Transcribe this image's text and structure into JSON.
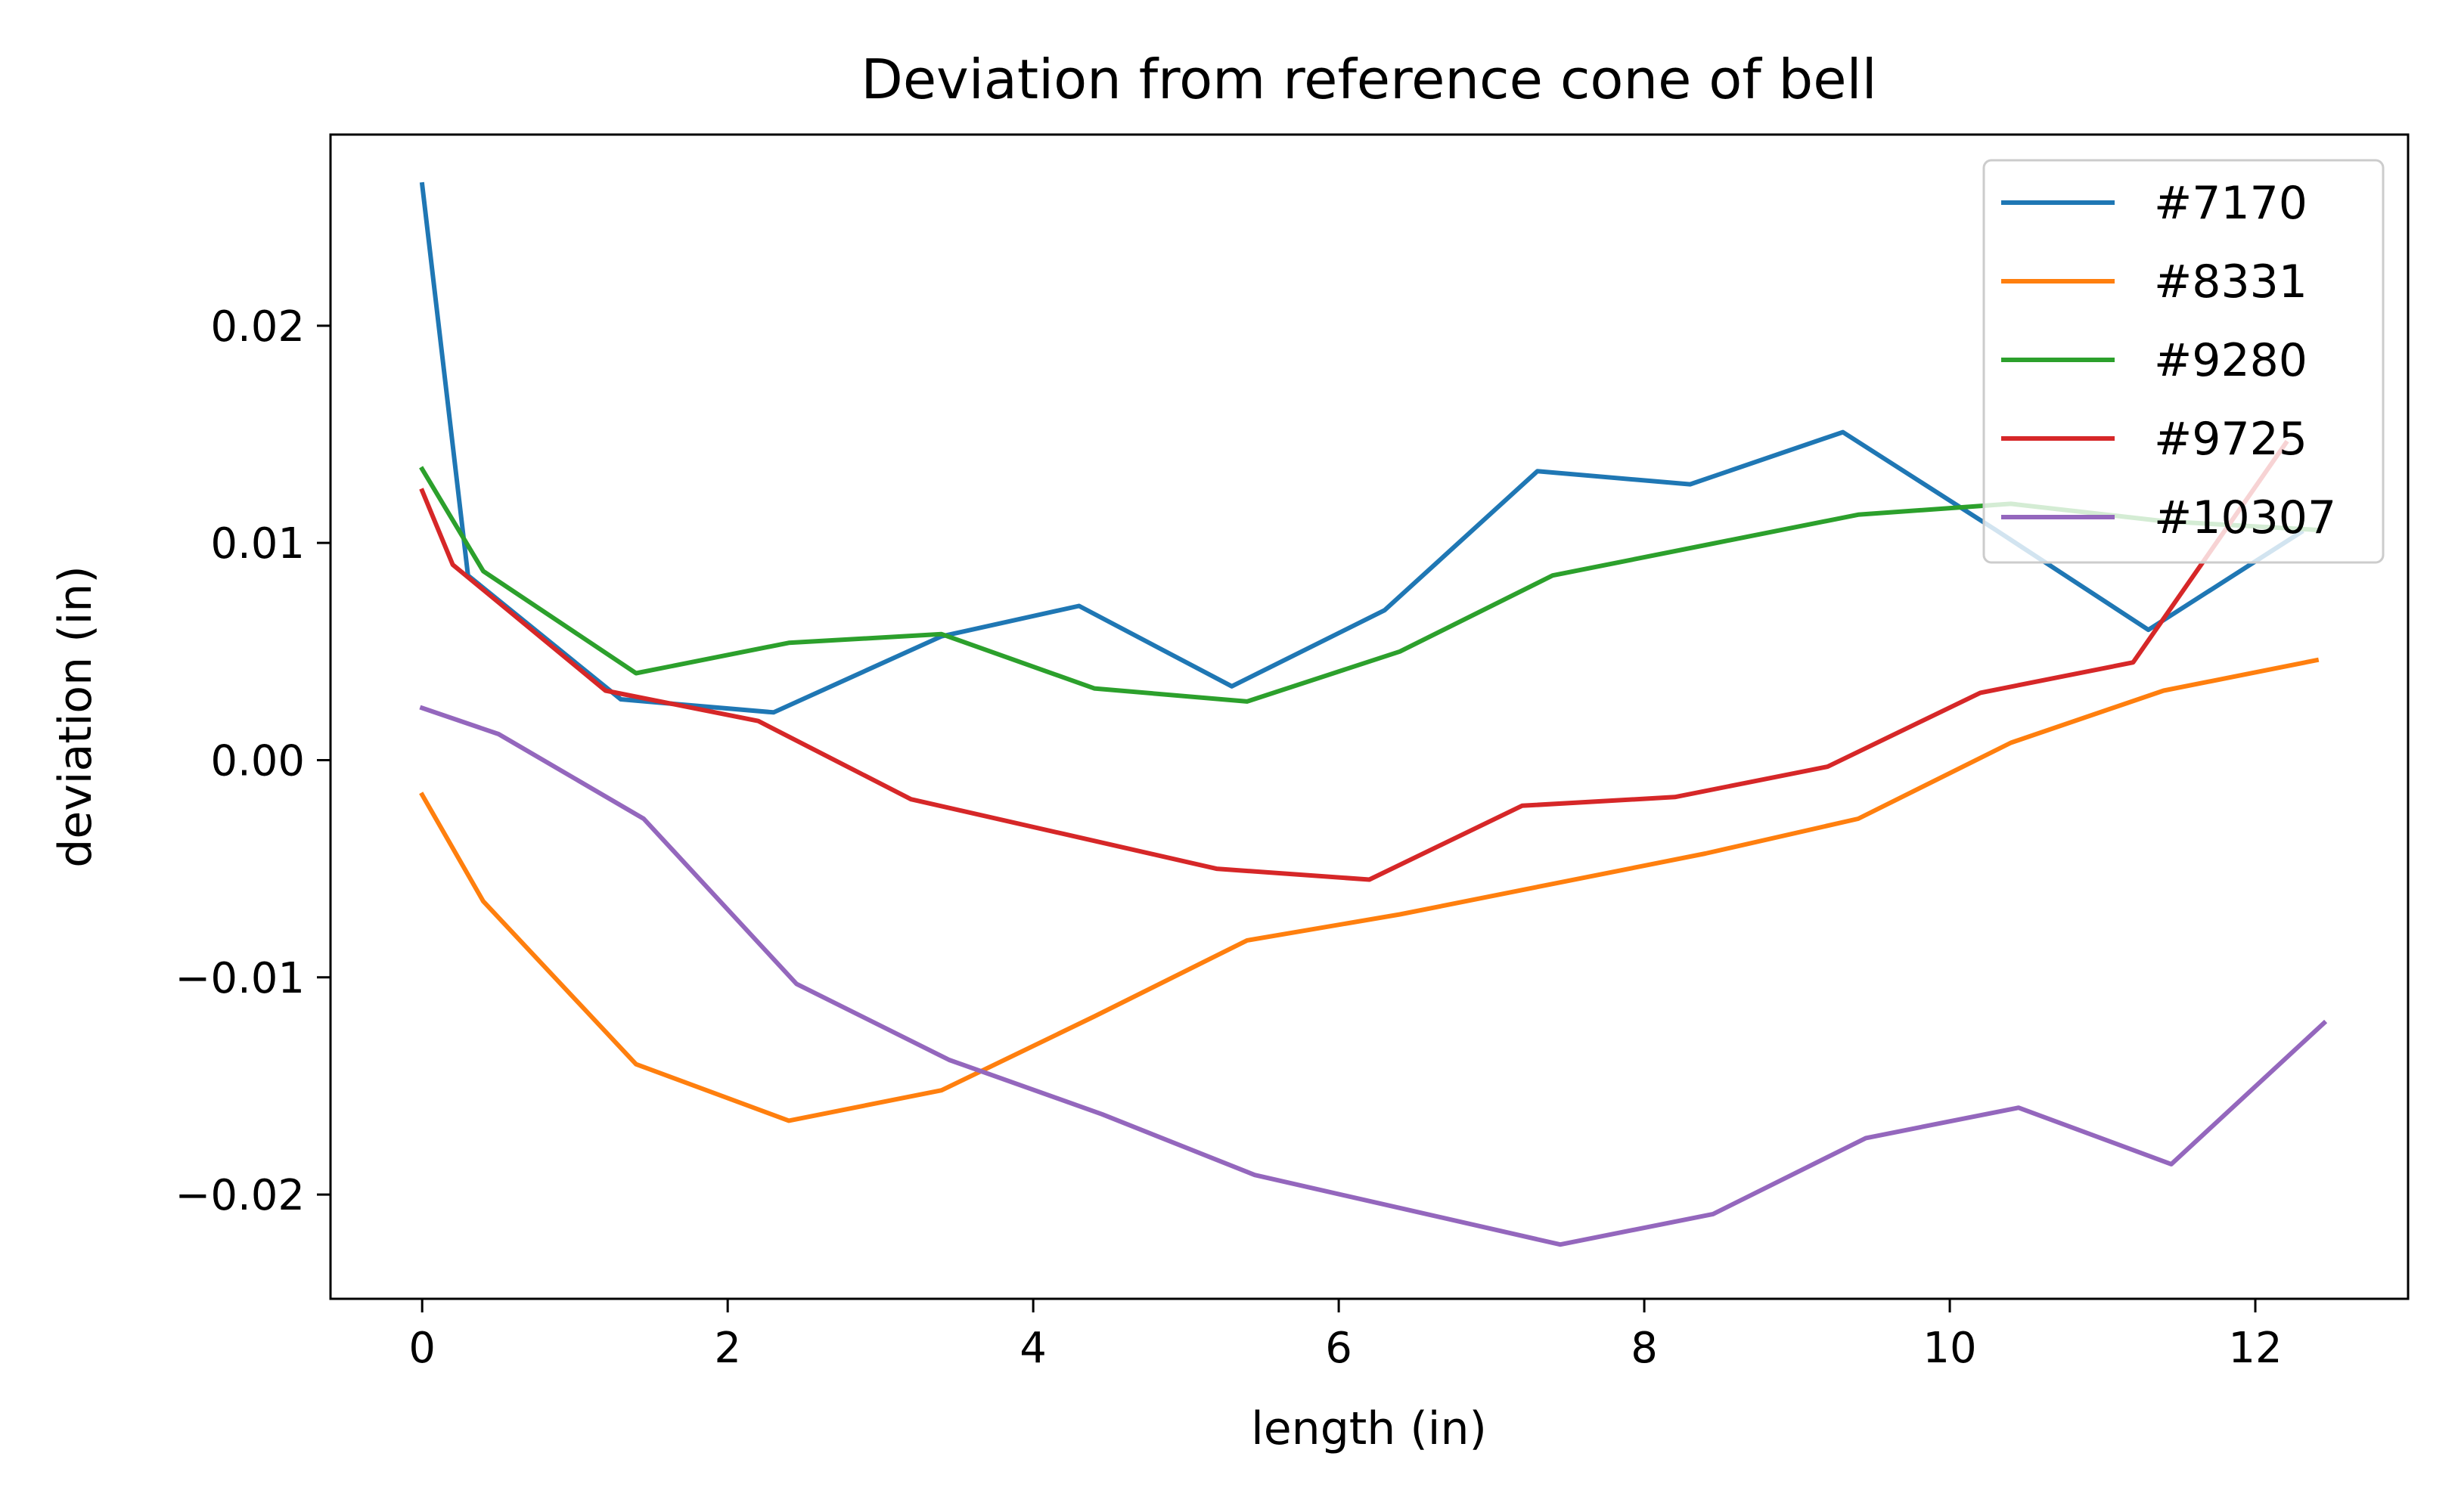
{
  "chart_data": {
    "type": "line",
    "title": "Deviation from reference cone of bell",
    "xlabel": "length (in)",
    "ylabel": "deviation (in)",
    "xlim": [
      -0.6,
      13.0
    ],
    "ylim": [
      -0.0248,
      0.0288
    ],
    "xticks": [
      0,
      2,
      4,
      6,
      8,
      10,
      12
    ],
    "xtick_labels": [
      "0",
      "2",
      "4",
      "6",
      "8",
      "10",
      "12"
    ],
    "yticks": [
      -0.02,
      -0.01,
      0.0,
      0.01,
      0.02
    ],
    "ytick_labels": [
      "−0.02",
      "−0.01",
      "0.00",
      "0.01",
      "0.02"
    ],
    "grid": false,
    "legend_position": "top-right",
    "series": [
      {
        "name": "#7170",
        "color": "#1f77b4",
        "x": [
          0,
          0.3,
          1.3,
          2.3,
          3.4,
          4.3,
          5.3,
          6.3,
          7.3,
          8.3,
          9.3,
          10.3,
          11.3,
          12.3
        ],
        "y": [
          0.0265,
          0.0085,
          0.0028,
          0.0022,
          0.0057,
          0.0071,
          0.0034,
          0.0069,
          0.0133,
          0.0127,
          0.0151,
          0.0106,
          0.006,
          0.0105
        ]
      },
      {
        "name": "#8331",
        "color": "#ff7f0e",
        "x": [
          0,
          0.4,
          1.4,
          2.4,
          3.4,
          4.4,
          5.4,
          6.4,
          7.4,
          8.4,
          9.4,
          10.4,
          11.4,
          12.4
        ],
        "y": [
          -0.0016,
          -0.0065,
          -0.014,
          -0.0166,
          -0.0152,
          -0.0118,
          -0.0083,
          -0.0071,
          -0.0057,
          -0.0043,
          -0.0027,
          0.0008,
          0.0032,
          0.0046
        ]
      },
      {
        "name": "#9280",
        "color": "#2ca02c",
        "x": [
          0,
          0.4,
          1.4,
          2.4,
          3.4,
          4.4,
          5.4,
          6.4,
          7.4,
          8.4,
          9.4,
          10.4,
          11.4,
          12.4
        ],
        "y": [
          0.0134,
          0.0087,
          0.004,
          0.0054,
          0.0058,
          0.0033,
          0.0027,
          0.005,
          0.0085,
          0.0099,
          0.0113,
          0.0118,
          0.011,
          0.0106
        ]
      },
      {
        "name": "#9725",
        "color": "#d62728",
        "x": [
          0,
          0.2,
          1.2,
          2.2,
          3.2,
          4.2,
          5.2,
          6.2,
          7.2,
          8.2,
          9.2,
          10.2,
          11.2,
          12.2
        ],
        "y": [
          0.0124,
          0.009,
          0.0032,
          0.0018,
          -0.0018,
          -0.0034,
          -0.005,
          -0.0055,
          -0.0021,
          -0.0017,
          -0.0003,
          0.0031,
          0.0045,
          0.0146
        ]
      },
      {
        "name": "#10307",
        "color": "#9467bd",
        "x": [
          0,
          0.5,
          1.45,
          2.45,
          3.45,
          4.45,
          5.45,
          6.45,
          7.45,
          8.45,
          9.45,
          10.45,
          11.45,
          12.45
        ],
        "y": [
          0.0024,
          0.0012,
          -0.0027,
          -0.0103,
          -0.0138,
          -0.0163,
          -0.0191,
          -0.0207,
          -0.0223,
          -0.0209,
          -0.0174,
          -0.016,
          -0.0186,
          -0.0121
        ]
      }
    ]
  }
}
